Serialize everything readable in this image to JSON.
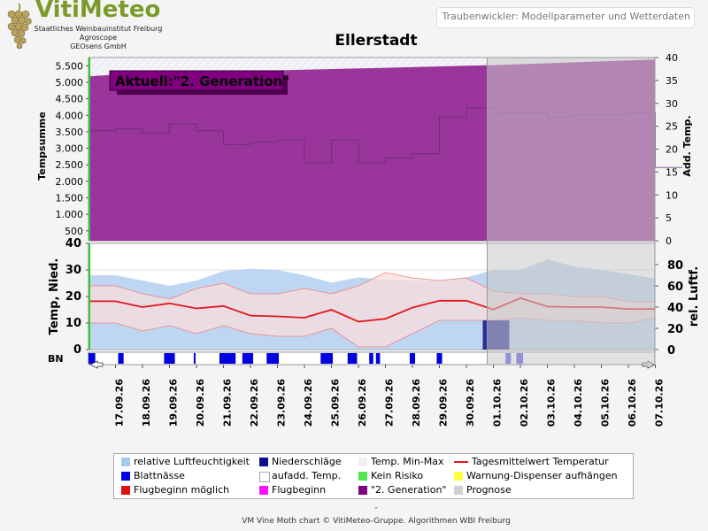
{
  "logo": {
    "title": "VitiMeteo",
    "line1": "Staatliches Weinbauinstitut Freiburg",
    "line2": "Agroscope",
    "line3": "GEOsens GmbH"
  },
  "header": {
    "text": "Traubenwickler: Modellparameter und Wetterdaten"
  },
  "footer": {
    "dash": "-",
    "text": "VM Vine Moth chart © VitiMeteo-Gruppe. Algorithmen WBI Freiburg"
  },
  "colors": {
    "generation": "#800080",
    "humidity": "#a8c8ee",
    "temp_band": "#f6c8c8",
    "temp_line": "#e01818",
    "precip": "#10108a",
    "leafwet": "#0000e0",
    "forecast": "#c8c8c8"
  },
  "chart_data": {
    "title": "Ellerstadt",
    "x_dates": [
      "17.09.26",
      "18.09.26",
      "19.09.26",
      "20.09.26",
      "21.09.26",
      "22.09.26",
      "23.09.26",
      "24.09.26",
      "25.09.26",
      "26.09.26",
      "27.09.26",
      "28.09.26",
      "29.09.26",
      "30.09.26",
      "01.10.26",
      "02.10.26",
      "03.10.26",
      "04.10.26",
      "05.10.26",
      "06.10.26",
      "07.10.26"
    ],
    "forecast_start": "01.10.26",
    "panels": [
      {
        "name": "top",
        "type": "area",
        "ylabel_left": "Tempsumme",
        "ylabel_right": "Add. Temp.",
        "yticks_left": [
          "5.500",
          "5.000",
          "4.500",
          "4.000",
          "3.500",
          "3.000",
          "2.500",
          "2.000",
          "1.500",
          "1.000",
          "500"
        ],
        "ylim_left": [
          200,
          5750
        ],
        "yticks_right": [
          "40",
          "35",
          "30",
          "25",
          "20",
          "15",
          "10",
          "5",
          "0"
        ],
        "ylim_right": [
          0,
          40
        ],
        "annotation": "Aktuell:\"2. Generation\"",
        "series": [
          {
            "name": "\"2. Generation\"",
            "x": [
              "16.09.26",
              "17.09.26",
              "20.09.26",
              "24.09.26",
              "27.09.26",
              "30.09.26",
              "01.10.26",
              "07.10.26"
            ],
            "values": [
              5180,
              5230,
              5300,
              5380,
              5440,
              5500,
              5520,
              5690
            ]
          }
        ],
        "add_temp": {
          "x": [
            "16.09.26",
            "17.09.26",
            "18.09.26",
            "19.09.26",
            "20.09.26",
            "21.09.26",
            "22.09.26",
            "23.09.26",
            "24.09.26",
            "25.09.26",
            "26.09.26",
            "27.09.26",
            "28.09.26",
            "29.09.26",
            "30.09.26",
            "01.10.26",
            "02.10.26",
            "03.10.26",
            "04.10.26",
            "05.10.26",
            "06.10.26",
            "07.10.26"
          ],
          "values": [
            24,
            24.5,
            23.5,
            25.5,
            24,
            21,
            21.5,
            22,
            17,
            22,
            17,
            18,
            19,
            27,
            29,
            28,
            28,
            27,
            27.5,
            27.5,
            28,
            16
          ]
        }
      },
      {
        "name": "bottom",
        "type": "line",
        "ylabel_left": "Temp, Nied.",
        "ylabel_right": "rel. Luftf.",
        "yticks_left": [
          "40",
          "30",
          "20",
          "10",
          "0"
        ],
        "ylim_left": [
          0,
          40
        ],
        "yticks_right": [
          "80",
          "60",
          "40",
          "20",
          "0"
        ],
        "ylim_right": [
          0,
          100
        ],
        "series": [
          {
            "name": "relative Luftfeuchtigkeit",
            "values": [
              70,
              65,
              60,
              65,
              74,
              76,
              75,
              70,
              63,
              68,
              66,
              65,
              65,
              68,
              75,
              75,
              85,
              78,
              75,
              71,
              67
            ]
          },
          {
            "name": "Temp. Min-Max (max)",
            "values": [
              24,
              21,
              19,
              23,
              25,
              21,
              21,
              23,
              21,
              24,
              29,
              27,
              26,
              27,
              22,
              21,
              21,
              20,
              20,
              18,
              18
            ]
          },
          {
            "name": "Temp. Min-Max (min)",
            "values": [
              10,
              7,
              9,
              6,
              9,
              6,
              5,
              5,
              8,
              1,
              1,
              6,
              11,
              11,
              11,
              12,
              11,
              11,
              10,
              10,
              12
            ]
          },
          {
            "name": "Tagesmittelwert Temperatur",
            "values": [
              18.2,
              16,
              17.4,
              15.5,
              16.4,
              12.8,
              12.5,
              12,
              15,
              10.5,
              11.6,
              15.8,
              18.4,
              18.4,
              15.1,
              19.4,
              16.2,
              16,
              16,
              15.3,
              15.3
            ]
          },
          {
            "name": "Niederschläge",
            "x": [
              "01.10.26"
            ],
            "values": [
              11
            ]
          }
        ]
      }
    ],
    "bn_row": {
      "label": "BN",
      "blattnaesse_day_ranges": [
        [
          16.0,
          16.25
        ],
        [
          17.1,
          17.3
        ],
        [
          18.8,
          19.2
        ],
        [
          19.9,
          19.95
        ],
        [
          20.85,
          21.45
        ],
        [
          21.7,
          22.1
        ],
        [
          22.6,
          23.05
        ],
        [
          24.6,
          25.05
        ],
        [
          25.6,
          25.95
        ],
        [
          26.4,
          26.55
        ],
        [
          26.65,
          26.8
        ],
        [
          27.9,
          28.1
        ],
        [
          28.9,
          29.1
        ]
      ],
      "forecast_ranges": [
        [
          31.45,
          31.65
        ],
        [
          31.85,
          32.1
        ]
      ]
    },
    "legend": [
      {
        "label": "relative Luftfeuchtigkeit",
        "color": "#a8c8ee"
      },
      {
        "label": "Niederschläge",
        "color": "#10108a"
      },
      {
        "label": "Temp. Min-Max",
        "color": "#efefef"
      },
      {
        "label": "Tagesmittelwert Temperatur",
        "color": "#e01818"
      },
      {
        "label": "Blattnässe",
        "color": "#0000e0"
      },
      {
        "label": "aufadd. Temp.",
        "color": "#ffffff"
      },
      {
        "label": "Kein Risiko",
        "color": "#50e850"
      },
      {
        "label": "Warnung-Dispenser aufhängen",
        "color": "#ffff40"
      },
      {
        "label": "Flugbeginn möglich",
        "color": "#e01010"
      },
      {
        "label": "Flugbeginn",
        "color": "#ff10ff"
      },
      {
        "label": "\"2. Generation\"",
        "color": "#800080"
      },
      {
        "label": "Prognose",
        "color": "#d0d0d0"
      }
    ]
  }
}
